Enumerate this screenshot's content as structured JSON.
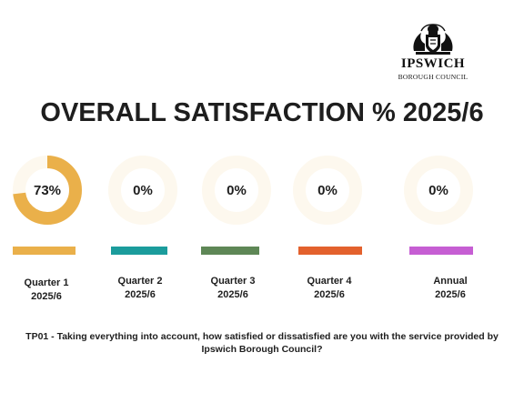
{
  "logo": {
    "name": "IPSWICH",
    "subtitle": "BOROUGH COUNCIL",
    "crest_icon": "coat-of-arms-icon"
  },
  "title": "OVERALL SATISFACTION % 2025/6",
  "chart_data": {
    "type": "donut",
    "title": "OVERALL SATISFACTION % 2025/6",
    "ring_track_color": "#fdf8ee",
    "series": [
      {
        "label_line1": "Quarter 1",
        "label_line2": "2025/6",
        "value": 73,
        "display": "73%",
        "color": "#eab04a"
      },
      {
        "label_line1": "Quarter 2",
        "label_line2": "2025/6",
        "value": 0,
        "display": "0%",
        "color": "#1b9c9c"
      },
      {
        "label_line1": "Quarter 3",
        "label_line2": "2025/6",
        "value": 0,
        "display": "0%",
        "color": "#5e8756"
      },
      {
        "label_line1": "Quarter 4",
        "label_line2": "2025/6",
        "value": 0,
        "display": "0%",
        "color": "#e3612d"
      },
      {
        "label_line1": "Annual",
        "label_line2": "2025/6",
        "value": 0,
        "display": "0%",
        "color": "#c65ed3"
      }
    ]
  },
  "footnote": "TP01 - Taking everything into account, how satisfied or dissatisfied are you with the service provided by Ipswich Borough Council?"
}
